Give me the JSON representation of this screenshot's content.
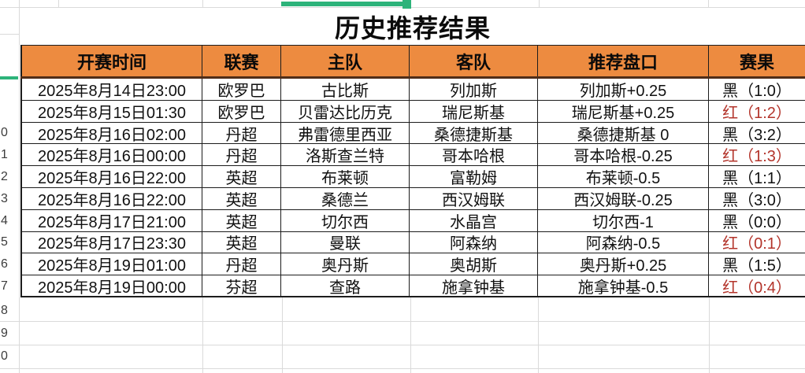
{
  "title": "历史推荐结果",
  "table": {
    "headers": [
      "开赛时间",
      "联赛",
      "主队",
      "客队",
      "推荐盘口",
      "赛果"
    ],
    "rows": [
      {
        "time": "2025年8月14日23:00",
        "league": "欧罗巴",
        "home": "古比斯",
        "away": "列加斯",
        "handicap": "列加斯+0.25",
        "result": "黑（1:0）"
      },
      {
        "time": "2025年8月15日01:30",
        "league": "欧罗巴",
        "home": "贝雷达比历克",
        "away": "瑞尼斯基",
        "handicap": "瑞尼斯基+0.25",
        "result": "红（1:2）"
      },
      {
        "time": "2025年8月16日02:00",
        "league": "丹超",
        "home": "弗雷德里西亚",
        "away": "桑德捷斯基",
        "handicap": "桑德捷斯基 0",
        "result": "黑（3:2）"
      },
      {
        "time": "2025年8月16日00:00",
        "league": "丹超",
        "home": "洛斯查兰特",
        "away": "哥本哈根",
        "handicap": "哥本哈根-0.25",
        "result": "红（1:3）"
      },
      {
        "time": "2025年8月16日22:00",
        "league": "英超",
        "home": "布莱顿",
        "away": "富勒姆",
        "handicap": "布莱顿-0.5",
        "result": "黑（1:1）"
      },
      {
        "time": "2025年8月16日22:00",
        "league": "英超",
        "home": "桑德兰",
        "away": "西汉姆联",
        "handicap": "西汉姆联-0.25",
        "result": "黑（3:0）"
      },
      {
        "time": "2025年8月17日21:00",
        "league": "英超",
        "home": "切尔西",
        "away": "水晶宫",
        "handicap": "切尔西-1",
        "result": "黑（0:0）"
      },
      {
        "time": "2025年8月17日23:30",
        "league": "英超",
        "home": "曼联",
        "away": "阿森纳",
        "handicap": "阿森纳-0.5",
        "result": "红（0:1）"
      },
      {
        "time": "2025年8月19日01:00",
        "league": "丹超",
        "home": "奥丹斯",
        "away": "奥胡斯",
        "handicap": "奥丹斯+0.25",
        "result": "黑（1:5）"
      },
      {
        "time": "2025年8月19日00:00",
        "league": "芬超",
        "home": "查路",
        "away": "施拿钟基",
        "handicap": "施拿钟基-0.5",
        "result": "红（0:4）"
      }
    ]
  },
  "gutter": {
    "table_row_digits": [
      "",
      "",
      "0",
      "1",
      "2",
      "3",
      "4",
      "5",
      "6",
      "7"
    ],
    "below_table_digits": [
      "8",
      "9",
      "0"
    ]
  },
  "colors": {
    "header_bg": "#ED8B40",
    "result_red": "#B3342B",
    "result_black": "#111111",
    "selection_green": "#2DB37A",
    "header_divider": "#502D18",
    "cell_border": "#1C1C1C",
    "gridline": "#DADADA"
  }
}
